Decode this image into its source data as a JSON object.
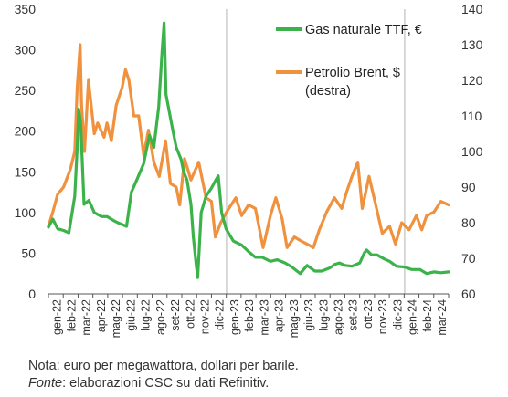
{
  "chart_data": {
    "type": "line",
    "title": "",
    "xlabel": "",
    "ylabel": "",
    "ylim_left": [
      0,
      350
    ],
    "yticks_left": [
      0,
      50,
      100,
      150,
      200,
      250,
      300,
      350
    ],
    "ylim_right": [
      60,
      140
    ],
    "yticks_right": [
      60,
      70,
      80,
      90,
      100,
      110,
      120,
      130,
      140
    ],
    "grid": false,
    "legend_position": "top-right",
    "x_tick_labels": [
      "gen-22",
      "feb-22",
      "mar-22",
      "apr-22",
      "mag-22",
      "giu-22",
      "lug-22",
      "ago-22",
      "set-22",
      "ott-22",
      "nov-22",
      "dic-22",
      "gen-23",
      "feb-23",
      "mar-23",
      "apr-23",
      "mag-23",
      "giu-23",
      "lug-23",
      "ago-23",
      "set-23",
      "ott-23",
      "nov-23",
      "dic-23",
      "gen-24",
      "feb-24",
      "mar-24"
    ],
    "x_range": [
      "2022-01-01",
      "2024-03-31"
    ],
    "year_separators": [
      "2023-01-01",
      "2024-01-01"
    ],
    "series": [
      {
        "name": "Gas naturale TTF, €",
        "axis": "left",
        "color": "#3cb34a",
        "points": [
          [
            "2022-01-01",
            82
          ],
          [
            "2022-01-10",
            92
          ],
          [
            "2022-01-20",
            80
          ],
          [
            "2022-02-01",
            78
          ],
          [
            "2022-02-12",
            75
          ],
          [
            "2022-02-24",
            120
          ],
          [
            "2022-03-01",
            180
          ],
          [
            "2022-03-04",
            227
          ],
          [
            "2022-03-08",
            210
          ],
          [
            "2022-03-15",
            110
          ],
          [
            "2022-03-25",
            115
          ],
          [
            "2022-04-05",
            100
          ],
          [
            "2022-04-20",
            95
          ],
          [
            "2022-05-01",
            95
          ],
          [
            "2022-05-15",
            90
          ],
          [
            "2022-05-25",
            87
          ],
          [
            "2022-06-10",
            83
          ],
          [
            "2022-06-20",
            125
          ],
          [
            "2022-07-01",
            140
          ],
          [
            "2022-07-15",
            160
          ],
          [
            "2022-07-27",
            195
          ],
          [
            "2022-08-05",
            180
          ],
          [
            "2022-08-15",
            230
          ],
          [
            "2022-08-22",
            300
          ],
          [
            "2022-08-26",
            333
          ],
          [
            "2022-08-30",
            245
          ],
          [
            "2022-09-10",
            210
          ],
          [
            "2022-09-20",
            180
          ],
          [
            "2022-09-30",
            165
          ],
          [
            "2022-10-05",
            150
          ],
          [
            "2022-10-12",
            140
          ],
          [
            "2022-10-20",
            110
          ],
          [
            "2022-10-25",
            70
          ],
          [
            "2022-10-31",
            35
          ],
          [
            "2022-11-03",
            20
          ],
          [
            "2022-11-10",
            100
          ],
          [
            "2022-11-20",
            120
          ],
          [
            "2022-12-01",
            130
          ],
          [
            "2022-12-10",
            140
          ],
          [
            "2022-12-15",
            145
          ],
          [
            "2022-12-22",
            100
          ],
          [
            "2022-12-31",
            80
          ],
          [
            "2023-01-15",
            65
          ],
          [
            "2023-02-01",
            60
          ],
          [
            "2023-02-15",
            52
          ],
          [
            "2023-03-01",
            45
          ],
          [
            "2023-03-15",
            45
          ],
          [
            "2023-04-01",
            40
          ],
          [
            "2023-04-15",
            42
          ],
          [
            "2023-05-01",
            38
          ],
          [
            "2023-05-15",
            33
          ],
          [
            "2023-06-01",
            25
          ],
          [
            "2023-06-15",
            35
          ],
          [
            "2023-07-01",
            28
          ],
          [
            "2023-07-15",
            28
          ],
          [
            "2023-08-01",
            32
          ],
          [
            "2023-08-10",
            36
          ],
          [
            "2023-08-20",
            38
          ],
          [
            "2023-09-01",
            35
          ],
          [
            "2023-09-15",
            34
          ],
          [
            "2023-10-01",
            38
          ],
          [
            "2023-10-10",
            50
          ],
          [
            "2023-10-15",
            54
          ],
          [
            "2023-10-25",
            48
          ],
          [
            "2023-11-05",
            48
          ],
          [
            "2023-11-20",
            43
          ],
          [
            "2023-12-01",
            40
          ],
          [
            "2023-12-15",
            34
          ],
          [
            "2024-01-01",
            33
          ],
          [
            "2024-01-15",
            30
          ],
          [
            "2024-02-01",
            30
          ],
          [
            "2024-02-15",
            25
          ],
          [
            "2024-03-01",
            27
          ],
          [
            "2024-03-15",
            26
          ],
          [
            "2024-03-31",
            27
          ]
        ]
      },
      {
        "name": "Petrolio Brent, $ (destra)",
        "axis": "right",
        "color": "#f0913e",
        "points": [
          [
            "2022-01-01",
            79
          ],
          [
            "2022-01-10",
            83
          ],
          [
            "2022-01-20",
            88
          ],
          [
            "2022-02-01",
            90
          ],
          [
            "2022-02-15",
            95
          ],
          [
            "2022-02-24",
            100
          ],
          [
            "2022-03-01",
            118
          ],
          [
            "2022-03-07",
            130
          ],
          [
            "2022-03-10",
            113
          ],
          [
            "2022-03-16",
            100
          ],
          [
            "2022-03-24",
            120
          ],
          [
            "2022-04-05",
            105
          ],
          [
            "2022-04-12",
            108
          ],
          [
            "2022-04-25",
            104
          ],
          [
            "2022-05-01",
            108
          ],
          [
            "2022-05-10",
            103
          ],
          [
            "2022-05-20",
            113
          ],
          [
            "2022-06-01",
            118
          ],
          [
            "2022-06-08",
            123
          ],
          [
            "2022-06-15",
            120
          ],
          [
            "2022-06-25",
            110
          ],
          [
            "2022-07-05",
            110
          ],
          [
            "2022-07-15",
            99
          ],
          [
            "2022-07-25",
            106
          ],
          [
            "2022-08-05",
            97
          ],
          [
            "2022-08-16",
            93
          ],
          [
            "2022-08-29",
            103
          ],
          [
            "2022-09-08",
            91
          ],
          [
            "2022-09-20",
            90
          ],
          [
            "2022-09-27",
            85
          ],
          [
            "2022-10-07",
            98
          ],
          [
            "2022-10-20",
            92
          ],
          [
            "2022-11-05",
            97
          ],
          [
            "2022-11-20",
            87
          ],
          [
            "2022-12-01",
            86
          ],
          [
            "2022-12-09",
            76
          ],
          [
            "2022-12-20",
            80
          ],
          [
            "2023-01-01",
            83
          ],
          [
            "2023-01-20",
            87
          ],
          [
            "2023-02-01",
            82
          ],
          [
            "2023-02-15",
            85
          ],
          [
            "2023-03-01",
            84
          ],
          [
            "2023-03-17",
            73
          ],
          [
            "2023-04-01",
            82
          ],
          [
            "2023-04-12",
            87
          ],
          [
            "2023-04-25",
            81
          ],
          [
            "2023-05-05",
            73
          ],
          [
            "2023-05-20",
            76
          ],
          [
            "2023-06-01",
            75
          ],
          [
            "2023-06-15",
            74
          ],
          [
            "2023-06-28",
            73
          ],
          [
            "2023-07-10",
            78
          ],
          [
            "2023-07-25",
            83
          ],
          [
            "2023-08-10",
            87
          ],
          [
            "2023-08-25",
            84
          ],
          [
            "2023-09-05",
            89
          ],
          [
            "2023-09-15",
            93
          ],
          [
            "2023-09-27",
            97
          ],
          [
            "2023-10-06",
            84
          ],
          [
            "2023-10-20",
            93
          ],
          [
            "2023-11-01",
            86
          ],
          [
            "2023-11-16",
            77
          ],
          [
            "2023-12-01",
            79
          ],
          [
            "2023-12-13",
            74
          ],
          [
            "2023-12-26",
            80
          ],
          [
            "2024-01-10",
            78
          ],
          [
            "2024-01-25",
            82
          ],
          [
            "2024-02-05",
            78
          ],
          [
            "2024-02-15",
            82
          ],
          [
            "2024-03-01",
            83
          ],
          [
            "2024-03-15",
            86
          ],
          [
            "2024-03-31",
            85
          ]
        ]
      }
    ]
  },
  "legend": {
    "gas": {
      "line1": "Gas naturale TTF, €"
    },
    "oil": {
      "line1": "Petrolio Brent, $",
      "line2": "(destra)"
    }
  },
  "footnotes": {
    "note": "Nota: euro per megawattora, dollari per barile.",
    "source_label": "Fonte",
    "source_text": ": elaborazioni CSC su dati Refinitiv."
  }
}
